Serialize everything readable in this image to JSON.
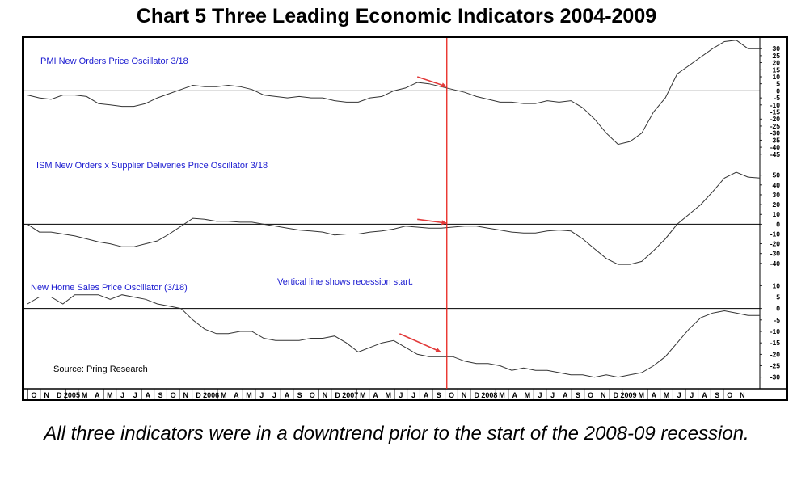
{
  "title": "Chart 5 Three Leading Economic Indicators 2004-2009",
  "caption": "All three indicators were in a downtrend prior to the start of the 2008-09 recession.",
  "colors": {
    "series": "#333333",
    "zero_line": "#000000",
    "recession_line": "#e8221c",
    "arrow": "#e23a3a",
    "label": "#1a1ad0"
  },
  "annotation": "Vertical line shows recession start.",
  "source": "Source: Pring Research",
  "x_axis": {
    "ticks": [
      "O",
      "N",
      "D",
      "2005",
      "M",
      "A",
      "M",
      "J",
      "J",
      "A",
      "S",
      "O",
      "N",
      "D",
      "2006",
      "M",
      "A",
      "M",
      "J",
      "J",
      "A",
      "S",
      "O",
      "N",
      "D",
      "2007",
      "M",
      "A",
      "M",
      "J",
      "J",
      "A",
      "S",
      "O",
      "N",
      "D",
      "2008",
      "M",
      "A",
      "M",
      "J",
      "J",
      "A",
      "S",
      "O",
      "N",
      "D",
      "2009",
      "M",
      "A",
      "M",
      "J",
      "J",
      "A",
      "S",
      "O",
      "N"
    ]
  },
  "chart_data": [
    {
      "type": "line",
      "name": "PMI New Orders Price Oscillator 3/18",
      "ylim": [
        -48,
        37
      ],
      "yticks": [
        30,
        25,
        20,
        15,
        10,
        5,
        0,
        -5,
        -10,
        -15,
        -20,
        -25,
        -30,
        -35,
        -40,
        -45
      ],
      "recession_month_index": 36,
      "values": [
        -3,
        -5,
        -6,
        -3,
        -3,
        -4,
        -9,
        -10,
        -11,
        -11,
        -9,
        -5,
        -2,
        1,
        4,
        3,
        3,
        4,
        3,
        1,
        -3,
        -4,
        -5,
        -4,
        -5,
        -5,
        -7,
        -8,
        -8,
        -5,
        -4,
        0,
        2,
        6,
        5,
        3,
        1,
        -1,
        -4,
        -6,
        -8,
        -8,
        -9,
        -9,
        -7,
        -8,
        -7,
        -12,
        -20,
        -30,
        -38,
        -36,
        -30,
        -15,
        -5,
        12,
        18,
        24,
        30,
        35,
        36,
        30,
        30
      ],
      "arrow": {
        "from": 33,
        "to": 35.5,
        "y_from": 10,
        "y_to": 3
      }
    },
    {
      "type": "line",
      "name": "ISM New  Orders x Supplier Deliveries Price Oscillator 3/18",
      "ylim": [
        -50,
        58
      ],
      "yticks": [
        50,
        40,
        30,
        20,
        10,
        0,
        -10,
        -20,
        -30,
        -40
      ],
      "recession_month_index": 36,
      "values": [
        0,
        -8,
        -8,
        -10,
        -12,
        -15,
        -18,
        -20,
        -23,
        -23,
        -20,
        -17,
        -10,
        -2,
        6,
        5,
        3,
        3,
        2,
        2,
        0,
        -2,
        -4,
        -6,
        -7,
        -8,
        -11,
        -10,
        -10,
        -8,
        -7,
        -5,
        -2,
        -3,
        -4,
        -4,
        -3,
        -2,
        -2,
        -4,
        -6,
        -8,
        -9,
        -9,
        -7,
        -6,
        -7,
        -15,
        -25,
        -35,
        -41,
        -41,
        -38,
        -27,
        -15,
        0,
        10,
        20,
        33,
        47,
        53,
        48,
        47
      ],
      "arrow": {
        "from": 33,
        "to": 35.5,
        "y_from": 5,
        "y_to": 1
      }
    },
    {
      "type": "line",
      "name": "New Home Sales Price Oscillator (3/18)",
      "ylim": [
        -34,
        14
      ],
      "yticks": [
        10,
        5,
        0,
        -5,
        -10,
        -15,
        -20,
        -25,
        -30
      ],
      "recession_month_index": 36,
      "values": [
        2,
        5,
        5,
        2,
        6,
        6,
        6,
        4,
        6,
        5,
        4,
        2,
        1,
        0,
        -5,
        -9,
        -11,
        -11,
        -10,
        -10,
        -13,
        -14,
        -14,
        -14,
        -13,
        -13,
        -12,
        -15,
        -19,
        -17,
        -15,
        -14,
        -17,
        -20,
        -21,
        -21,
        -21,
        -23,
        -24,
        -24,
        -25,
        -27,
        -26,
        -27,
        -27,
        -28,
        -29,
        -29,
        -30,
        -29,
        -30,
        -29,
        -28,
        -25,
        -21,
        -15,
        -9,
        -4,
        -2,
        -1,
        -2,
        -3,
        -3
      ],
      "arrow": {
        "from": 31.5,
        "to": 35,
        "y_from": -11,
        "y_to": -19
      }
    }
  ]
}
